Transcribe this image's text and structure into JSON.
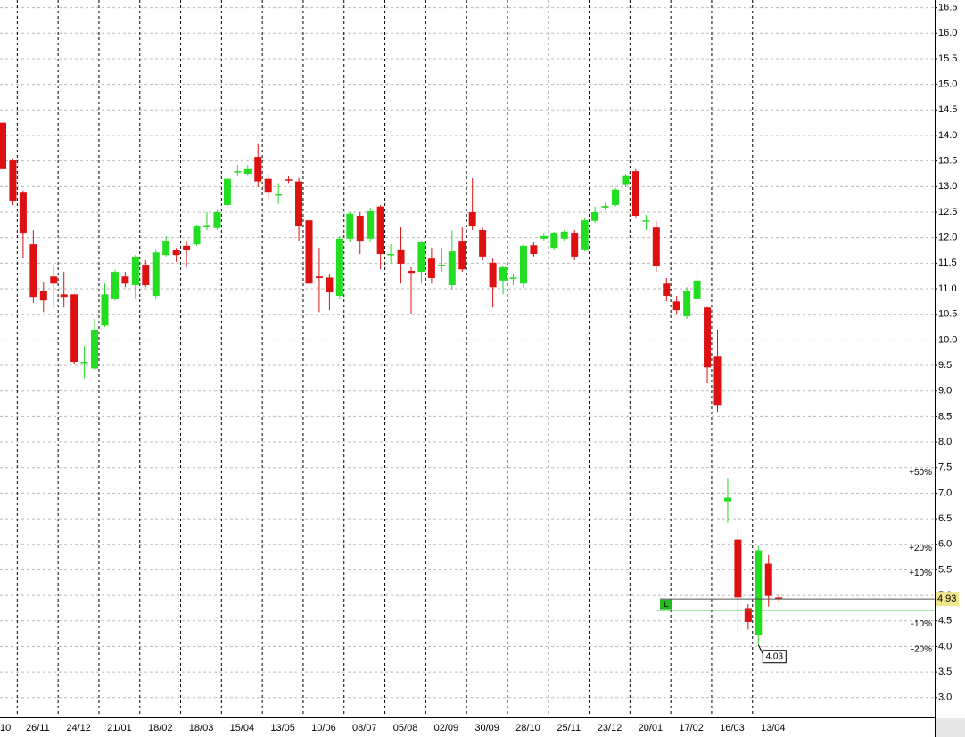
{
  "chart_data": {
    "type": "candlestick",
    "categories": [
      "10",
      null,
      null,
      "26/11",
      null,
      null,
      null,
      "24/12",
      null,
      null,
      null,
      "21/01",
      null,
      null,
      null,
      "18/02",
      null,
      null,
      null,
      "18/03",
      null,
      null,
      null,
      "15/04",
      null,
      null,
      null,
      "13/05",
      null,
      null,
      null,
      "10/06",
      null,
      null,
      null,
      "08/07",
      null,
      null,
      null,
      "05/08",
      null,
      null,
      null,
      "02/09",
      null,
      null,
      null,
      "30/09",
      null,
      null,
      null,
      "28/10",
      null,
      null,
      null,
      "25/11",
      null,
      null,
      null,
      "23/12",
      null,
      null,
      null,
      "20/01",
      null,
      null,
      null,
      "17/02",
      null,
      null,
      null,
      "16/03",
      null,
      null,
      null,
      "13/04",
      null
    ],
    "open": [
      14.25,
      13.51,
      12.88,
      11.87,
      10.96,
      11.24,
      10.89,
      10.89,
      9.55,
      9.44,
      10.28,
      10.81,
      11.24,
      11.07,
      11.47,
      10.86,
      11.66,
      11.75,
      11.84,
      11.87,
      12.22,
      12.19,
      12.64,
      13.29,
      13.25,
      13.58,
      13.15,
      12.84,
      13.14,
      13.1,
      12.34,
      11.24,
      11.22,
      10.86,
      11.98,
      12.43,
      11.98,
      12.61,
      11.66,
      11.77,
      11.35,
      11.33,
      11.59,
      11.45,
      11.07,
      11.94,
      12.5,
      12.15,
      11.51,
      11.16,
      11.21,
      11.1,
      11.85,
      11.98,
      11.8,
      11.98,
      12.08,
      11.77,
      12.33,
      12.59,
      12.64,
      13.03,
      13.3,
      12.33,
      12.2,
      11.1,
      10.75,
      10.46,
      10.81,
      10.63,
      9.67,
      6.84,
      6.09,
      4.75,
      4.22,
      5.62,
      4.96
    ],
    "high": [
      14.25,
      13.55,
      12.92,
      12.15,
      11.14,
      11.47,
      11.33,
      10.89,
      9.88,
      10.41,
      11.1,
      11.37,
      11.33,
      11.66,
      11.56,
      11.77,
      12.03,
      11.8,
      11.94,
      12.25,
      12.5,
      12.54,
      13.17,
      13.42,
      13.42,
      13.83,
      13.24,
      13.07,
      13.21,
      13.17,
      12.38,
      11.8,
      11.28,
      12.03,
      12.5,
      12.5,
      12.59,
      12.64,
      11.87,
      12.2,
      11.42,
      11.94,
      11.8,
      11.8,
      12.15,
      12.2,
      13.16,
      12.2,
      11.59,
      11.45,
      11.28,
      11.87,
      11.91,
      12.08,
      12.12,
      12.15,
      12.15,
      12.38,
      12.61,
      12.68,
      12.97,
      13.25,
      13.34,
      12.45,
      12.33,
      11.21,
      10.86,
      11.03,
      11.42,
      10.66,
      10.2,
      7.3,
      6.34,
      4.83,
      5.97,
      5.79,
      5.01
    ],
    "low": [
      13.34,
      12.64,
      11.59,
      10.72,
      10.54,
      10.63,
      10.63,
      9.53,
      9.25,
      9.41,
      10.25,
      10.77,
      11.03,
      10.81,
      11.03,
      10.79,
      11.63,
      11.52,
      11.42,
      11.84,
      12.15,
      12.15,
      12.61,
      13.2,
      13.22,
      12.99,
      12.73,
      12.66,
      13.07,
      11.94,
      11.03,
      10.54,
      10.58,
      10.81,
      11.91,
      11.68,
      11.91,
      11.38,
      11.49,
      11.1,
      10.51,
      11.1,
      11.1,
      11.33,
      10.98,
      11.33,
      12.15,
      11.56,
      10.63,
      10.89,
      11.07,
      11.03,
      11.63,
      11.94,
      11.77,
      11.94,
      11.56,
      11.73,
      12.29,
      12.54,
      12.61,
      12.99,
      12.38,
      12.15,
      11.33,
      10.75,
      10.51,
      10.41,
      10.72,
      9.15,
      8.59,
      6.42,
      4.29,
      4.33,
      4.03,
      4.78,
      4.88
    ],
    "close": [
      13.34,
      12.71,
      12.08,
      10.84,
      10.77,
      11.1,
      10.84,
      9.57,
      9.57,
      10.2,
      10.89,
      11.33,
      11.1,
      11.63,
      11.07,
      11.71,
      11.94,
      11.66,
      11.75,
      12.22,
      12.23,
      12.5,
      13.15,
      13.3,
      13.34,
      13.1,
      12.88,
      12.85,
      13.12,
      12.22,
      11.1,
      11.21,
      10.93,
      11.98,
      12.47,
      11.94,
      12.52,
      11.68,
      11.68,
      11.49,
      11.31,
      11.91,
      11.21,
      11.47,
      11.73,
      11.38,
      12.22,
      11.63,
      11.03,
      11.42,
      11.22,
      11.84,
      11.68,
      12.03,
      12.08,
      12.12,
      11.63,
      12.34,
      12.5,
      12.62,
      12.94,
      13.22,
      12.43,
      12.34,
      11.45,
      10.86,
      10.58,
      10.95,
      11.16,
      9.46,
      8.71,
      6.91,
      4.96,
      4.48,
      5.88,
      4.99,
      4.93
    ],
    "up_color": "#22dd22",
    "down_color": "#dd1111",
    "ylim": [
      2.7,
      16.65
    ],
    "yticks": [
      {
        "value": 3,
        "label": "3.0"
      },
      3.5,
      {
        "value": 4,
        "label": "4.0"
      },
      4.5,
      {
        "value": 5,
        "label": "5.0"
      },
      5.5,
      {
        "value": 6,
        "label": "6.0"
      },
      6.5,
      {
        "value": 7,
        "label": "7.0"
      },
      7.5,
      {
        "value": 8,
        "label": "8.0"
      },
      8.5,
      {
        "value": 9,
        "label": "9.0"
      },
      9.5,
      {
        "value": 10,
        "label": "10.0"
      },
      10.5,
      {
        "value": 11,
        "label": "11.0"
      },
      11.5,
      {
        "value": 12,
        "label": "12.0"
      },
      12.5,
      {
        "value": 13,
        "label": "13.0"
      },
      13.5,
      {
        "value": 14,
        "label": "14.0"
      },
      14.5,
      {
        "value": 15,
        "label": "15.0"
      },
      15.5,
      {
        "value": 16,
        "label": "16.0"
      },
      16.5
    ],
    "grid": true,
    "levels": [
      {
        "label": "+50%",
        "value": 7.4,
        "color": "#1a9a1a"
      },
      {
        "label": "+20%",
        "value": 5.92,
        "color": "#1a9a1a"
      },
      {
        "label": "+10%",
        "value": 5.43,
        "color": "#1a9a1a"
      },
      {
        "label": "-10%",
        "value": 4.44,
        "color": "#cc1111"
      },
      {
        "label": "-20%",
        "value": 3.94,
        "color": "#cc1111"
      }
    ],
    "last_price": 4.93,
    "low_label": 4.03,
    "line_label": "L",
    "line_level": 4.71,
    "line_color": "#22bb22"
  }
}
